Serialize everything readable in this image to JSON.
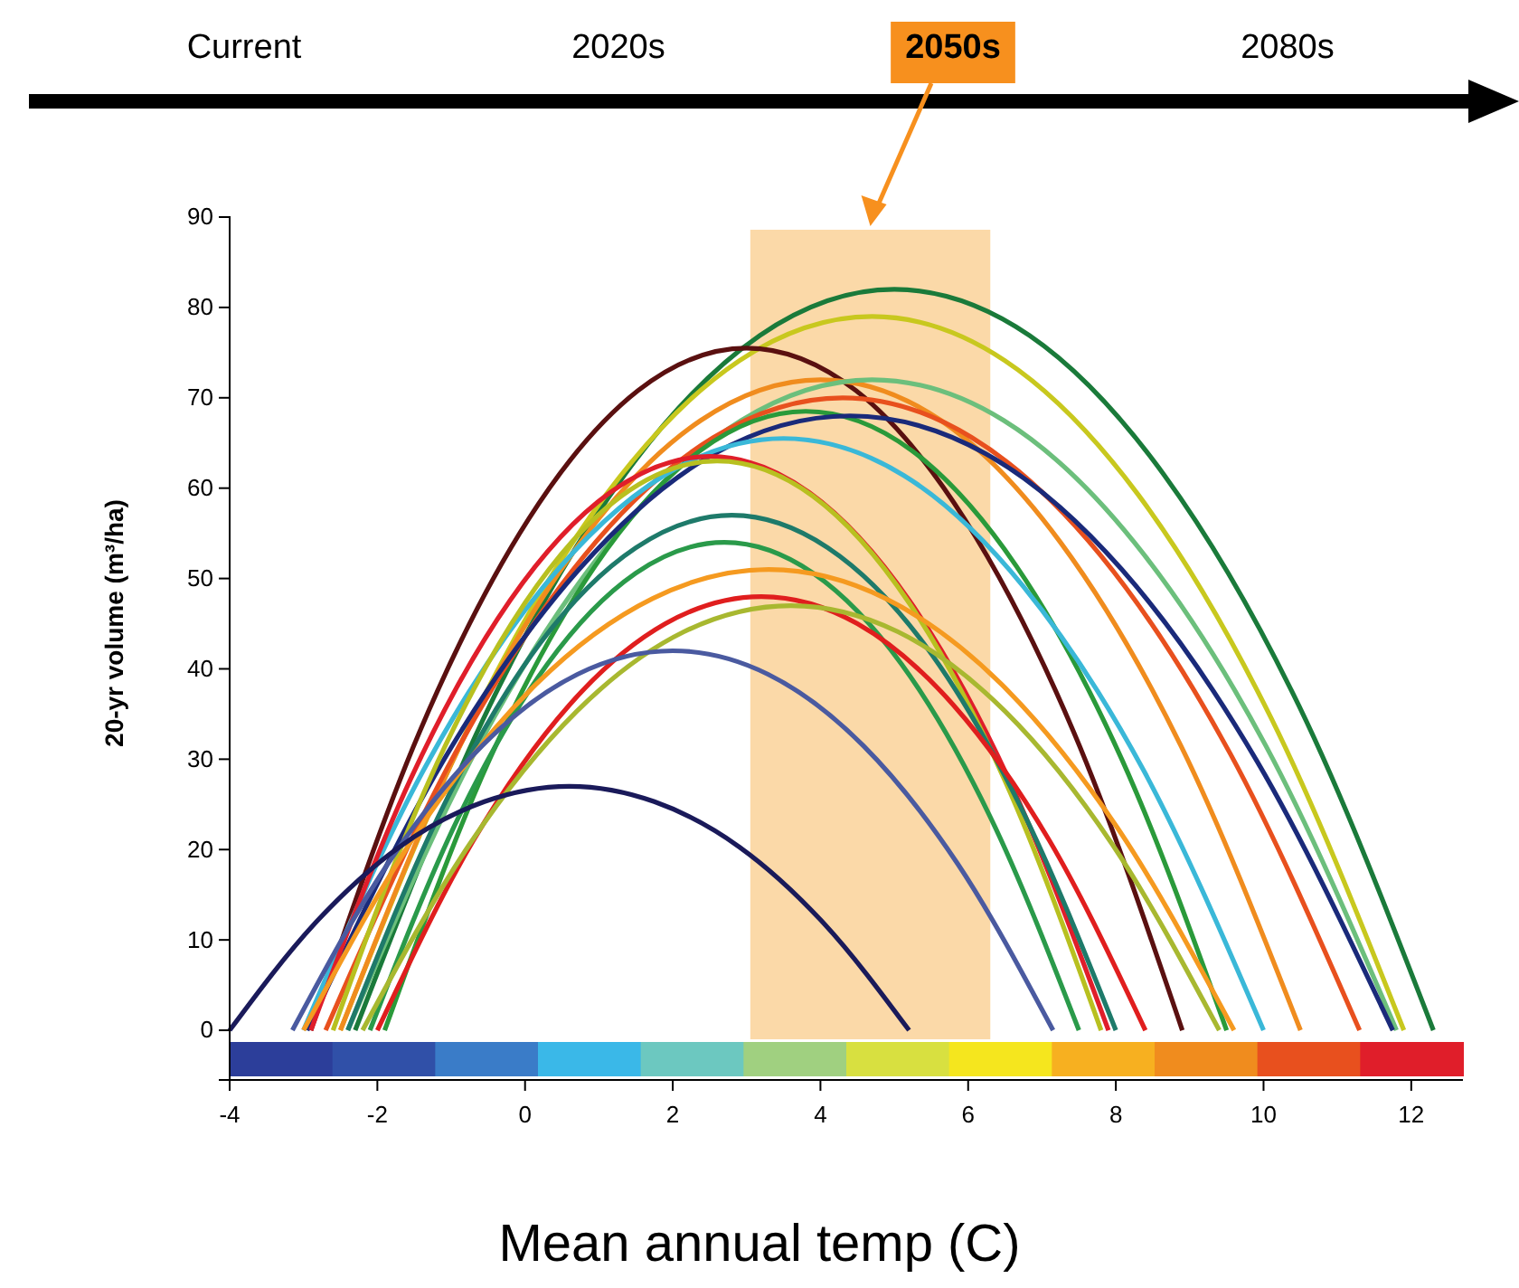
{
  "chart_data": {
    "type": "line",
    "xlabel": "Mean annual temp (C)",
    "ylabel": "20-yr volume (m³/ha)",
    "annotations": [
      "Current",
      "2020s",
      "2050s",
      "2080s"
    ],
    "bands": [
      {
        "axis": "x",
        "from": 3.05,
        "to": 6.3,
        "color": "#fbd9a8"
      }
    ],
    "xlim": [
      -4,
      12.7
    ],
    "xticks": [
      -4,
      -2,
      0,
      2,
      4,
      6,
      8,
      10,
      12
    ],
    "ylim": [
      -5.5,
      90
    ],
    "yticks": [
      0,
      10,
      20,
      30,
      40,
      50,
      60,
      70,
      80,
      90
    ],
    "grid": false,
    "marker": "none",
    "line_style": "solid",
    "series": [
      {
        "color": "#1a7a3a",
        "x": [
          -2.3,
          -0.48,
          1.35,
          3.18,
          5.0,
          6.83,
          8.65,
          10.48,
          12.3
        ],
        "values": [
          0,
          35.9,
          61.5,
          76.9,
          82,
          76.9,
          61.5,
          35.9,
          0
        ]
      },
      {
        "color": "#c8c81e",
        "x": [
          -2.5,
          -0.7,
          1.1,
          2.9,
          4.7,
          6.5,
          8.3,
          10.1,
          11.9
        ],
        "values": [
          0,
          34.6,
          59.3,
          74.1,
          79,
          74.1,
          59.3,
          34.6,
          0
        ]
      },
      {
        "color": "#5a1010",
        "x": [
          -2.9,
          -1.43,
          0.05,
          1.53,
          3.0,
          4.48,
          5.95,
          7.43,
          8.9
        ],
        "values": [
          0,
          33.0,
          56.6,
          70.8,
          75.5,
          70.8,
          56.6,
          33.0,
          0
        ]
      },
      {
        "color": "#f08c1e",
        "x": [
          -2.5,
          -0.88,
          0.75,
          2.38,
          4.0,
          5.63,
          7.25,
          8.88,
          10.5
        ],
        "values": [
          0,
          31.5,
          54,
          67.5,
          72,
          67.5,
          54,
          31.5,
          0
        ]
      },
      {
        "color": "#6cbf7c",
        "x": [
          -2.4,
          -0.63,
          1.15,
          2.93,
          4.7,
          6.48,
          8.25,
          10.03,
          11.8
        ],
        "values": [
          0,
          31.5,
          54,
          67.5,
          72,
          67.5,
          54,
          31.5,
          0
        ]
      },
      {
        "color": "#e8501e",
        "x": [
          -2.7,
          -0.95,
          0.8,
          2.55,
          4.3,
          6.05,
          7.8,
          9.55,
          11.3
        ],
        "values": [
          0,
          30.6,
          52.5,
          65.6,
          70,
          65.6,
          52.5,
          30.6,
          0
        ]
      },
      {
        "color": "#2a9a3a",
        "x": [
          -1.9,
          -0.48,
          0.95,
          2.38,
          3.8,
          5.23,
          6.65,
          8.08,
          9.5
        ],
        "values": [
          0,
          30.0,
          51.4,
          64.2,
          68.5,
          64.2,
          51.4,
          30.0,
          0
        ]
      },
      {
        "color": "#1a2a7a",
        "x": [
          -2.95,
          -1.11,
          0.73,
          2.56,
          4.4,
          6.24,
          8.08,
          9.91,
          11.75
        ],
        "values": [
          0,
          29.8,
          51,
          63.8,
          68,
          63.8,
          51,
          29.8,
          0
        ]
      },
      {
        "color": "#3ab8d8",
        "x": [
          -3,
          -1.38,
          0.25,
          1.88,
          3.5,
          5.13,
          6.75,
          8.38,
          10
        ],
        "values": [
          0,
          28.7,
          49.1,
          61.4,
          65.5,
          61.4,
          49.1,
          28.7,
          0
        ]
      },
      {
        "color": "#e01e2a",
        "x": [
          -2.9,
          -1.55,
          -0.2,
          1.15,
          2.5,
          3.85,
          5.2,
          6.55,
          7.9
        ],
        "values": [
          0,
          27.8,
          47.6,
          59.5,
          63.5,
          59.5,
          47.6,
          27.8,
          0
        ]
      },
      {
        "color": "#b8c020",
        "x": [
          -2.6,
          -1.3,
          0,
          1.3,
          2.6,
          3.9,
          5.2,
          6.5,
          7.8
        ],
        "values": [
          0,
          27.6,
          47.3,
          59.1,
          63,
          59.1,
          47.3,
          27.6,
          0
        ]
      },
      {
        "color": "#1e7a6a",
        "x": [
          -2.4,
          -1.1,
          0.2,
          1.5,
          2.8,
          4.1,
          5.4,
          6.7,
          8.0
        ],
        "values": [
          0,
          24.9,
          42.8,
          53.4,
          57,
          53.4,
          42.8,
          24.9,
          0
        ]
      },
      {
        "color": "#2a9a4a",
        "x": [
          -2.1,
          -0.9,
          0.3,
          1.5,
          2.7,
          3.9,
          5.1,
          6.3,
          7.5
        ],
        "values": [
          0,
          23.6,
          40.5,
          50.6,
          54,
          50.6,
          40.5,
          23.6,
          0
        ]
      },
      {
        "color": "#f59a20",
        "x": [
          -3,
          -1.43,
          0.15,
          1.73,
          3.3,
          4.88,
          6.45,
          8.03,
          9.6
        ],
        "values": [
          0,
          22.3,
          38.3,
          47.8,
          51,
          47.8,
          38.3,
          22.3,
          0
        ]
      },
      {
        "color": "#e01e1e",
        "x": [
          -2,
          -0.7,
          0.6,
          1.9,
          3.2,
          4.5,
          5.8,
          7.1,
          8.4
        ],
        "values": [
          0,
          21,
          36,
          45,
          48,
          45,
          36,
          21,
          0
        ]
      },
      {
        "color": "#a8b830",
        "x": [
          -2.2,
          -0.75,
          0.7,
          2.15,
          3.6,
          5.05,
          6.5,
          7.95,
          9.4
        ],
        "values": [
          0,
          20.6,
          35.3,
          44.1,
          47,
          44.1,
          35.3,
          20.6,
          0
        ]
      },
      {
        "color": "#4a5aa0",
        "x": [
          -3.15,
          -1.86,
          -0.58,
          0.71,
          2.0,
          3.29,
          4.58,
          5.86,
          7.15
        ],
        "values": [
          0,
          18.4,
          31.5,
          39.4,
          42,
          39.4,
          31.5,
          18.4,
          0
        ]
      },
      {
        "color": "#1a1a5a",
        "x": [
          -4,
          -2.85,
          -1.7,
          -0.55,
          0.6,
          1.75,
          2.9,
          4.05,
          5.2
        ],
        "values": [
          0,
          11.8,
          20.3,
          25.3,
          27,
          25.3,
          20.3,
          11.8,
          0
        ]
      }
    ]
  }
}
